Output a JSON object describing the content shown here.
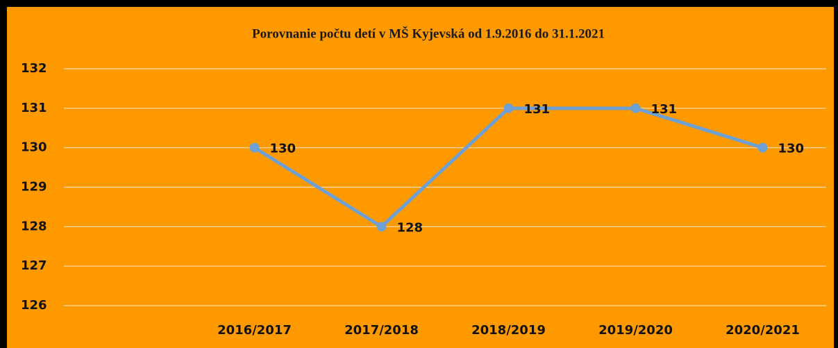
{
  "chart_data": {
    "type": "line",
    "title": "Porovnanie počtu detí v MŠ Kyjevská od 1.9.2016 do 31.1.2021",
    "categories": [
      null,
      "2016/2017",
      "2017/2018",
      "2018/2019",
      "2019/2020",
      "2020/2021"
    ],
    "series": [
      {
        "color": "#6fa0d4",
        "values": [
          null,
          130,
          128,
          131,
          131,
          130
        ]
      }
    ],
    "ylim": [
      126,
      132
    ],
    "yticks": [
      126,
      127,
      128,
      129,
      130,
      131,
      132
    ],
    "grid": true,
    "background": "#ff9900"
  }
}
